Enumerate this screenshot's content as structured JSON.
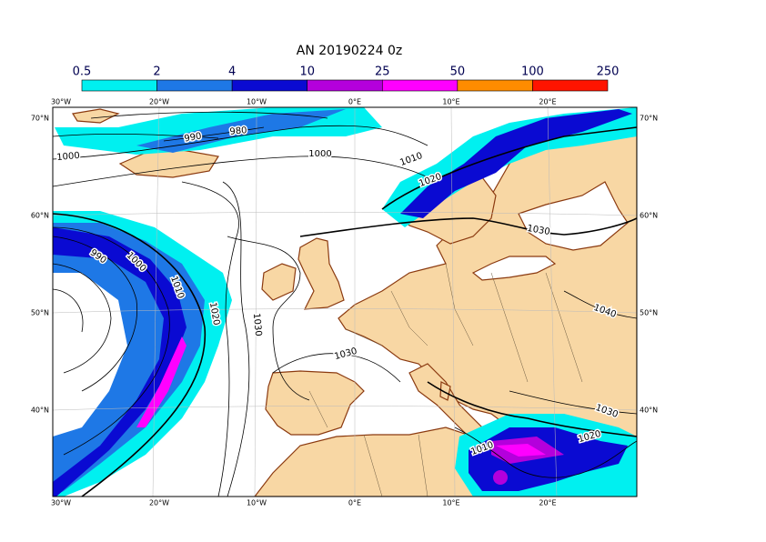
{
  "title": "AN 20190224 0z",
  "colorbar": {
    "levels": [
      0.5,
      2,
      4,
      10,
      25,
      50,
      100,
      250
    ],
    "colors": [
      "#00f0f0",
      "#1e78e6",
      "#0a0ad2",
      "#b400dc",
      "#ff00ff",
      "#ff8c00",
      "#ff1400"
    ]
  },
  "lon_labels": [
    "30°W",
    "20°W",
    "10°W",
    "0°E",
    "10°E",
    "20°E"
  ],
  "lat_labels": [
    "70°N",
    "60°N",
    "50°N",
    "40°N"
  ],
  "isobar_labels": [
    "1000",
    "990",
    "980",
    "1000",
    "1010",
    "1020",
    "1030",
    "990",
    "1000",
    "1010",
    "1020",
    "1030",
    "1030",
    "1040",
    "1030",
    "1020",
    "1010"
  ]
}
